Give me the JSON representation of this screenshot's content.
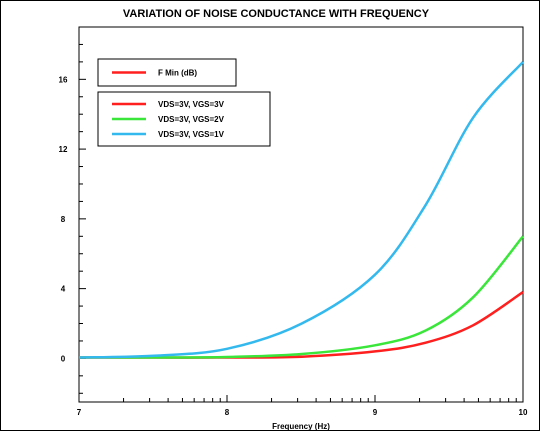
{
  "chart_data": {
    "type": "line",
    "title": "VARIATION OF NOISE CONDUCTANCE WITH FREQUENCY",
    "xlabel": "Frequency (Hz)",
    "ylabel": "",
    "x_scale": "log",
    "xlim": [
      10000000.0,
      10000000000.0
    ],
    "ylim": [
      -2.5,
      19
    ],
    "x_tick_values": [
      10000000.0,
      100000000.0,
      1000000000.0,
      10000000000.0
    ],
    "x_tick_labels": [
      "7",
      "8",
      "9",
      "10"
    ],
    "y_tick_values": [
      0,
      4,
      8,
      12,
      16
    ],
    "y_tick_labels": [
      "0",
      "4",
      "8",
      "12",
      "16"
    ],
    "grid": false,
    "legend_placement": "top-left",
    "legends": [
      {
        "entries": [
          {
            "label": "F Min (dB)",
            "color": "#ff1f1f"
          }
        ]
      },
      {
        "entries": [
          {
            "label": "VDS=3V, VGS=3V",
            "color": "#ff1f1f"
          },
          {
            "label": "VDS=3V, VGS=2V",
            "color": "#39e639"
          },
          {
            "label": "VDS=3V, VGS=1V",
            "color": "#33b9ee"
          }
        ]
      }
    ],
    "x": [
      10000000.0,
      32000000.0,
      100000000.0,
      320000000.0,
      1000000000.0,
      2200000000.0,
      4600000000.0,
      10000000000.0
    ],
    "series": [
      {
        "name": "VDS=3V, VGS=3V",
        "color": "#ff1f1f",
        "values": [
          0.05,
          0.05,
          0.05,
          0.1,
          0.4,
          0.9,
          1.9,
          3.8
        ]
      },
      {
        "name": "VDS=3V, VGS=2V",
        "color": "#39e639",
        "values": [
          0.05,
          0.05,
          0.08,
          0.25,
          0.75,
          1.6,
          3.5,
          7.0
        ]
      },
      {
        "name": "VDS=3V, VGS=1V",
        "color": "#33b9ee",
        "values": [
          0.05,
          0.15,
          0.55,
          2.0,
          4.8,
          8.8,
          13.8,
          17.0
        ]
      }
    ]
  }
}
